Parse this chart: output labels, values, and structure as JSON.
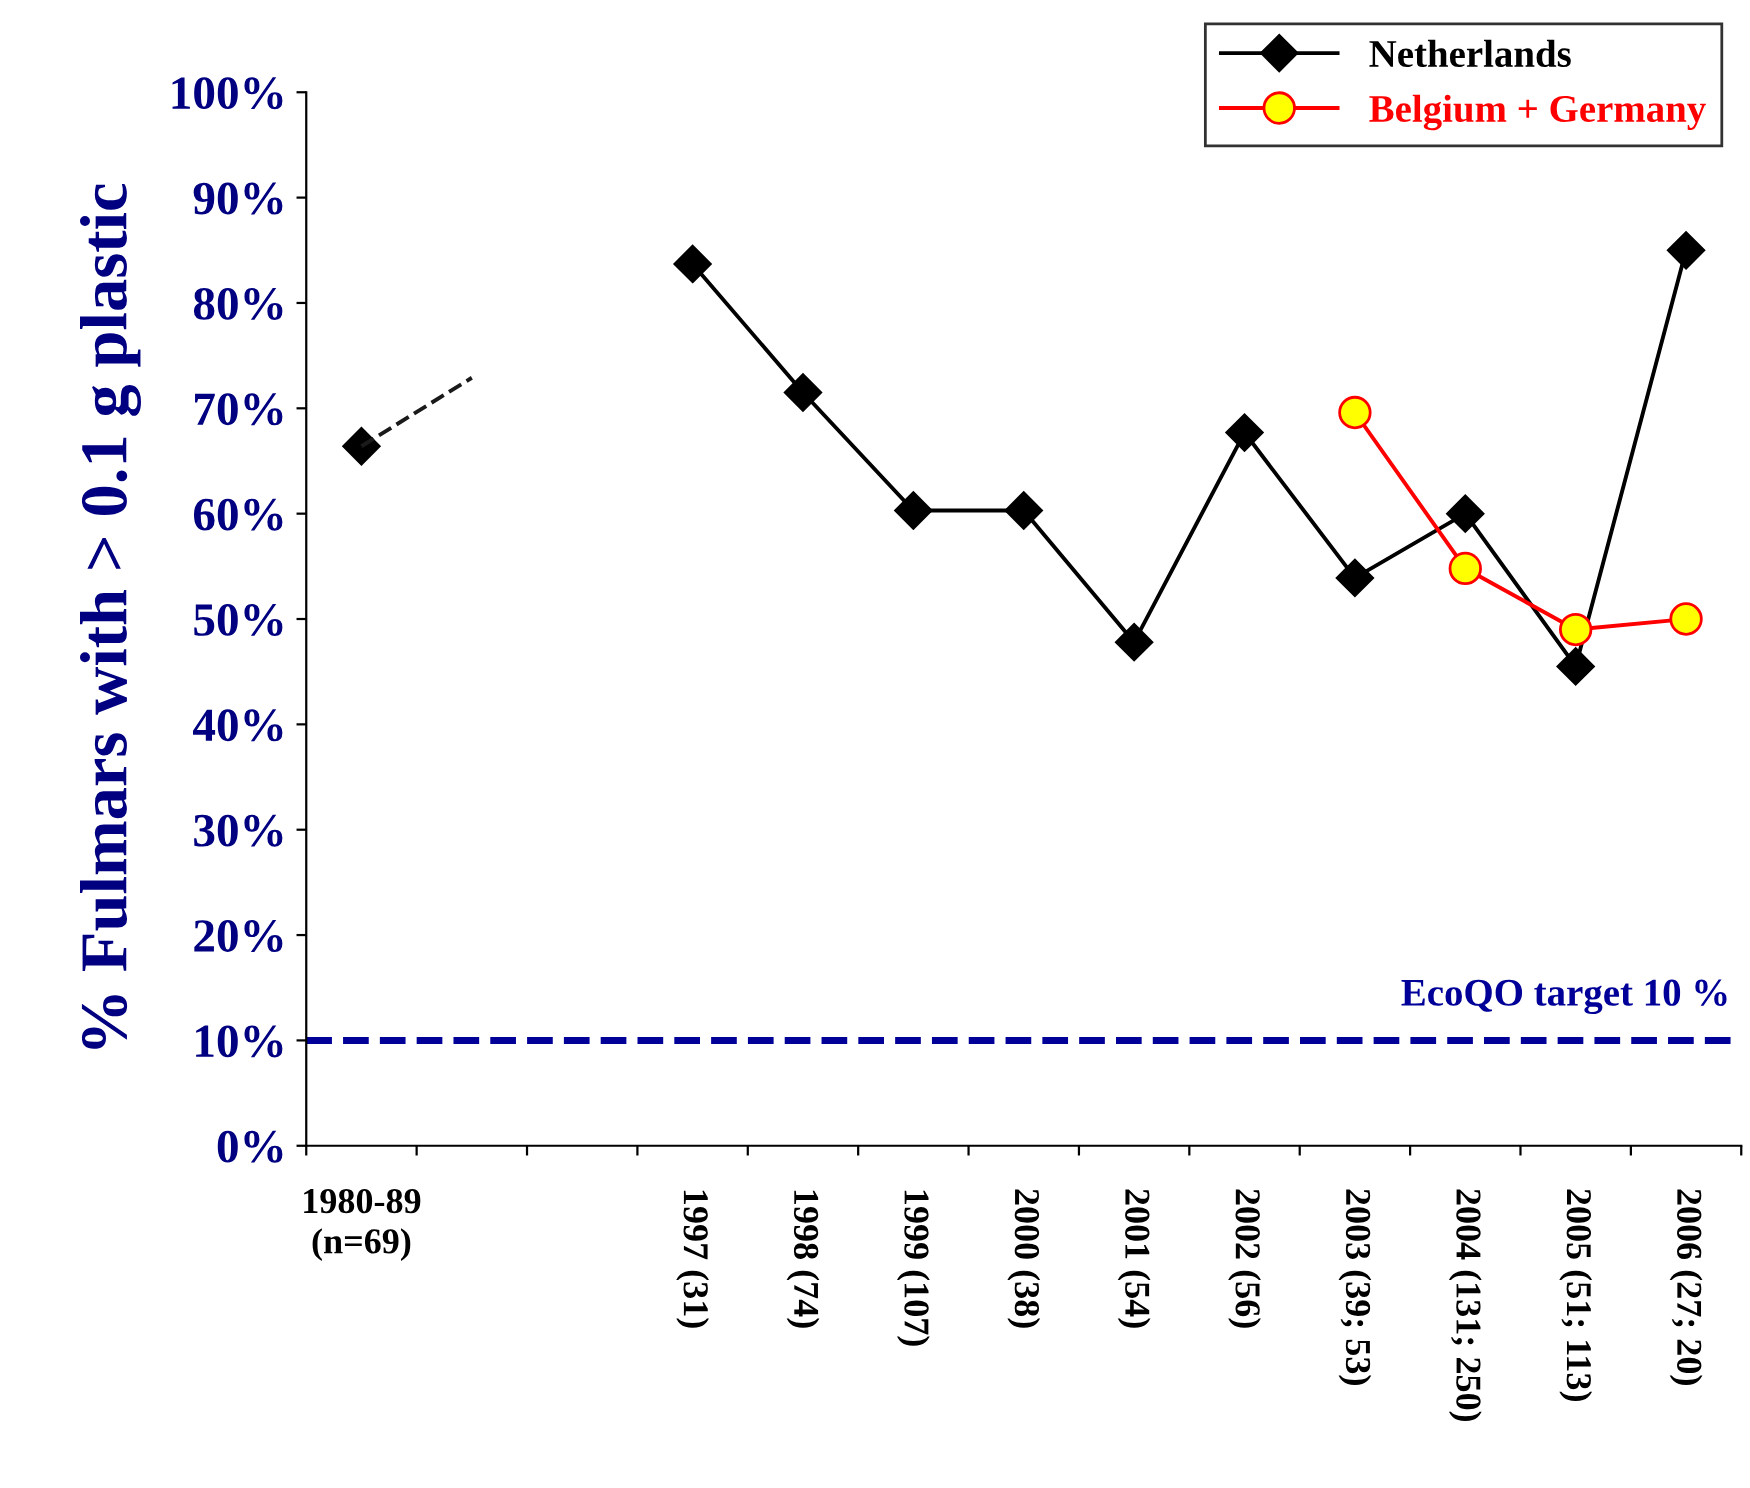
{
  "chart_data": {
    "type": "line",
    "ylabel": "% Fulmars with > 0.1 g plastic",
    "categories": [
      "1980-89\n(n=69)",
      null,
      null,
      "1997 (31)",
      "1998 (74)",
      "1999 (107)",
      "2000 (38)",
      "2001 (54)",
      "2002 (56)",
      "2003 (39; 53)",
      "2004 (131; 250)",
      "2005 (51; 113)",
      "2006 (27; 20)"
    ],
    "ylim": [
      0,
      100
    ],
    "yticks": [
      {
        "value": 0,
        "label": "0%"
      },
      {
        "value": 10,
        "label": "10%"
      },
      {
        "value": 20,
        "label": "20%"
      },
      {
        "value": 30,
        "label": "30%"
      },
      {
        "value": 40,
        "label": "40%"
      },
      {
        "value": 50,
        "label": "50%"
      },
      {
        "value": 60,
        "label": "60%"
      },
      {
        "value": 70,
        "label": "70%"
      },
      {
        "value": 80,
        "label": "80%"
      },
      {
        "value": 90,
        "label": "90%"
      },
      {
        "value": 100,
        "label": "100%"
      }
    ],
    "series": [
      {
        "name": "Netherlands",
        "color": "#000000",
        "marker": "diamond",
        "values": [
          66.4,
          null,
          null,
          83.7,
          71.5,
          60.3,
          60.3,
          47.8,
          67.7,
          53.9,
          60.0,
          45.5,
          85.0
        ]
      },
      {
        "name": "Belgium + Germany",
        "color": "#ff0000",
        "marker": "circle",
        "values": [
          null,
          null,
          null,
          null,
          null,
          null,
          null,
          null,
          null,
          69.6,
          54.8,
          49.0,
          50.0
        ]
      },
      {
        "color": "#1a1a1a",
        "marker": "none",
        "line_style": "dashed",
        "values": [
          66.4,
          72.9,
          null,
          null,
          null,
          null,
          null,
          null,
          null,
          null,
          null,
          null,
          null
        ]
      }
    ],
    "ref_lines": [
      {
        "axis": "y",
        "value": 10,
        "label": "EcoQO target 10 %",
        "color": "#000099",
        "line_style": "dashed"
      }
    ],
    "grid": false,
    "legend": "top right"
  }
}
